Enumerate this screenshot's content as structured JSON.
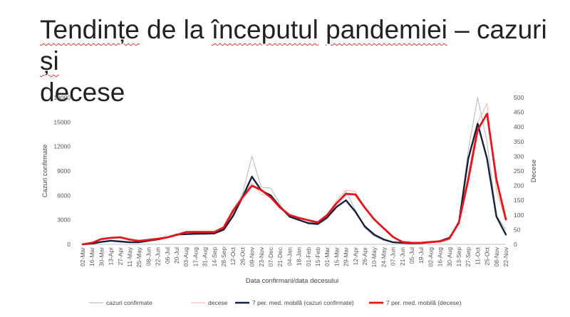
{
  "slide": {
    "title_line1_part1": "Tendințe",
    "title_line1_part2": " de la ",
    "title_line1_part3": "începutul",
    "title_line1_part4": " ",
    "title_line1_part5": "pandemiei",
    "title_line1_part6": " – cazuri ",
    "title_line1_part7": "și",
    "title_line2": "decese"
  },
  "colors": {
    "cases_daily": "#b0b0b0",
    "deaths_daily": "#f0b0a8",
    "cases_avg": "#14213d",
    "deaths_avg": "#e8141b"
  },
  "chart_data": {
    "type": "line",
    "title": "",
    "xlabel": "Data confirmarii/data decesului",
    "ylabel": "Cazuri confirmate",
    "y2label": "Decese",
    "ylim": [
      0,
      18000
    ],
    "y2lim": [
      0,
      500
    ],
    "yticks": [
      "0",
      "3000",
      "6000",
      "9000",
      "12000",
      "15000",
      "18000"
    ],
    "y2ticks": [
      "0",
      "50",
      "100",
      "150",
      "200",
      "250",
      "300",
      "350",
      "400",
      "450",
      "500"
    ],
    "categories": [
      "02-Mar",
      "16-Mar",
      "30-Mar",
      "13-Apr",
      "27-Apr",
      "11-May",
      "25-May",
      "08-Jun",
      "22-Jun",
      "06-Jul",
      "20-Jul",
      "03-Aug",
      "17-Aug",
      "31-Aug",
      "14-Sep",
      "28-Sep",
      "12-Oct",
      "26-Oct",
      "09-Nov",
      "23-Nov",
      "07-Dec",
      "21-Dec",
      "04-Jan",
      "18-Jan",
      "01-Feb",
      "15-Feb",
      "01-Mar",
      "15-Mar",
      "29-Mar",
      "12-Apr",
      "26-Apr",
      "10-May",
      "24-May",
      "07-Jun",
      "21-Jun",
      "05-Jul",
      "19-Jul",
      "02-Aug",
      "16-Aug",
      "30-Aug",
      "13-Sep",
      "27-Sep",
      "11-Oct",
      "25-Oct",
      "08-Nov",
      "22-Nov"
    ],
    "legend_position": "bottom",
    "grid": false,
    "series": [
      {
        "name": "cazuri confirmate",
        "axis": "left",
        "style": "daily",
        "values": [
          0,
          150,
          300,
          450,
          300,
          200,
          250,
          450,
          600,
          850,
          1300,
          1200,
          1200,
          1250,
          1250,
          1900,
          3800,
          6200,
          10800,
          7000,
          6900,
          4900,
          3300,
          3000,
          2500,
          2400,
          3100,
          5000,
          6500,
          4200,
          2000,
          1000,
          500,
          200,
          150,
          100,
          150,
          250,
          400,
          800,
          2800,
          11500,
          18000,
          12500,
          3500,
          1800
        ]
      },
      {
        "name": "decese",
        "axis": "right",
        "style": "daily",
        "values": [
          0,
          5,
          18,
          24,
          24,
          16,
          12,
          16,
          20,
          24,
          32,
          42,
          40,
          40,
          42,
          60,
          120,
          165,
          210,
          170,
          165,
          130,
          95,
          90,
          80,
          70,
          100,
          150,
          185,
          180,
          125,
          85,
          55,
          25,
          8,
          5,
          5,
          8,
          10,
          20,
          80,
          240,
          415,
          480,
          180,
          80
        ]
      },
      {
        "name": "7 per. med. mobilă (cazuri confirmate)",
        "axis": "left",
        "style": "avg",
        "values": [
          0,
          100,
          300,
          450,
          350,
          250,
          250,
          450,
          600,
          850,
          1200,
          1250,
          1300,
          1300,
          1350,
          1800,
          3500,
          5800,
          8300,
          6600,
          6000,
          4600,
          3400,
          3000,
          2600,
          2500,
          3300,
          4600,
          5400,
          4000,
          2200,
          1200,
          600,
          250,
          180,
          120,
          150,
          250,
          400,
          800,
          2600,
          10500,
          14800,
          10500,
          3400,
          1200
        ]
      },
      {
        "name": "7 per. med. mobilă (decese)",
        "axis": "right",
        "style": "avg",
        "values": [
          0,
          5,
          18,
          22,
          24,
          16,
          12,
          15,
          19,
          24,
          32,
          42,
          42,
          42,
          42,
          58,
          115,
          160,
          200,
          185,
          160,
          125,
          100,
          90,
          82,
          75,
          100,
          140,
          172,
          170,
          125,
          85,
          55,
          25,
          8,
          5,
          5,
          8,
          10,
          20,
          75,
          220,
          390,
          445,
          220,
          85
        ]
      }
    ]
  }
}
